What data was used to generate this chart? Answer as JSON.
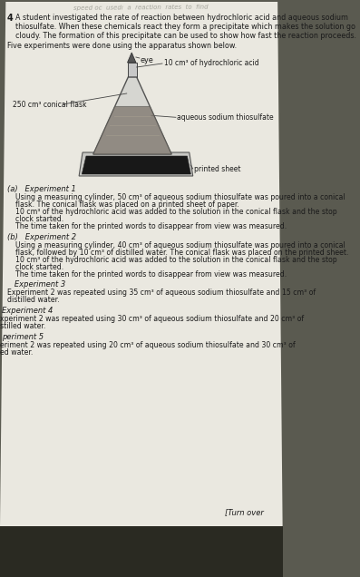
{
  "page_bg": "#d8d5cc",
  "paper_bg": "#e8e6e0",
  "header_text": "speed oc  usedı  a  reaction  rates  to  find",
  "question_num": "4",
  "intro_line1": "A student investigated the rate of reaction between hydrochloric acid and aqueous sodium",
  "intro_line2": "thiosulfate. When these chemicals react they form a precipitate which makes the solution go",
  "intro_line3": "cloudy. The formation of this precipitate can be used to show how fast the reaction proceeds.",
  "five_exp_text": "Five experiments were done using the apparatus shown below.",
  "label_eye": "eye",
  "label_hcl": "10 cm³ of hydrochloric acid",
  "label_flask": "250 cm³ conical flask",
  "label_solution": "aqueous sodium thiosulfate",
  "label_sheet": "printed sheet",
  "exp_a_header": "(a)   Experiment 1",
  "exp_a_lines": [
    "Using a measuring cylinder, 50 cm³ of aqueous sodium thiosulfate was poured into a conical",
    "flask. The conical flask was placed on a printed sheet of paper.",
    "10 cm³ of the hydrochloric acid was added to the solution in the conical flask and the stop",
    "clock started.",
    "The time taken for the printed words to disappear from view was measured."
  ],
  "exp_b_header": "(b)   Experiment 2",
  "exp_b_lines": [
    "Using a measuring cylinder, 40 cm³ of aqueous sodium thiosulfate was poured into a conical",
    "flask, followed by 10 cm³ of distilled water. The conical flask was placed on the printed sheet.",
    "10 cm³ of the hydrochloric acid was added to the solution in the conical flask and the stop",
    "clock started.",
    "The time taken for the printed words to disappear from view was measured."
  ],
  "exp_c_header": "   Experiment 3",
  "exp_c_lines": [
    "Experiment 2 was repeated using 35 cm³ of aqueous sodium thiosulfate and 15 cm³ of",
    "distilled water."
  ],
  "exp_d_header": "Experiment 4",
  "exp_d_lines": [
    "xperiment 2 was repeated using 30 cm³ of aqueous sodium thiosulfate and 20 cm³ of",
    "stilled water."
  ],
  "exp_e_header": "periment 5",
  "exp_e_lines": [
    "eriment 2 was repeated using 20 cm³ of aqueous sodium thiosulfate and 30 cm³ of",
    "ed water."
  ],
  "turn_over": "[Turn over"
}
